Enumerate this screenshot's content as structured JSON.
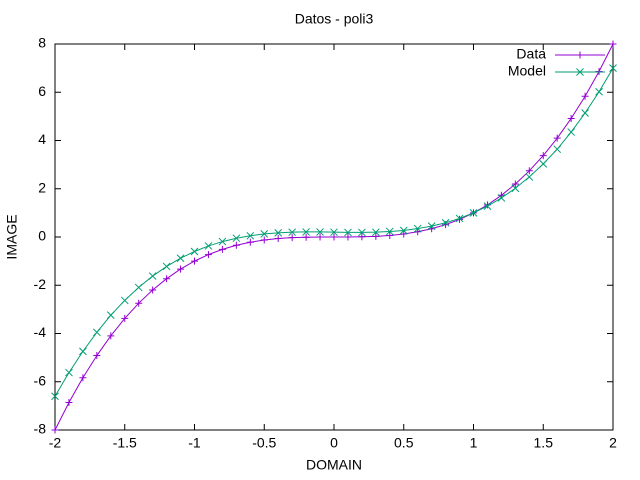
{
  "chart_data": {
    "type": "line",
    "title": "Datos - poli3",
    "xlabel": "DOMAIN",
    "ylabel": "IMAGE",
    "x": [
      -2,
      -1.9,
      -1.8,
      -1.7,
      -1.6,
      -1.5,
      -1.4,
      -1.3,
      -1.2,
      -1.1,
      -1,
      -0.9,
      -0.8,
      -0.7,
      -0.6,
      -0.5,
      -0.4,
      -0.3,
      -0.2,
      -0.1,
      0,
      0.1,
      0.2,
      0.3,
      0.4,
      0.5,
      0.6,
      0.7,
      0.8,
      0.9,
      1,
      1.1,
      1.2,
      1.3,
      1.4,
      1.5,
      1.6,
      1.7,
      1.8,
      1.9,
      2
    ],
    "series": [
      {
        "name": "Data",
        "color": "#9400d3",
        "marker": "plus",
        "values": [
          -8,
          -6.859,
          -5.832,
          -4.913,
          -4.096,
          -3.375,
          -2.744,
          -2.197,
          -1.728,
          -1.331,
          -1,
          -0.729,
          -0.512,
          -0.343,
          -0.216,
          -0.125,
          -0.064,
          -0.027,
          -0.008,
          -0.001,
          0,
          0.001,
          0.008,
          0.027,
          0.064,
          0.125,
          0.216,
          0.343,
          0.512,
          0.729,
          1,
          1.331,
          1.728,
          2.197,
          2.744,
          3.375,
          4.096,
          4.913,
          5.832,
          6.859,
          8
        ]
      },
      {
        "name": "Model",
        "color": "#009e73",
        "marker": "cross",
        "values": [
          -6.6,
          -5.62,
          -4.74,
          -3.95,
          -3.24,
          -2.63,
          -2.09,
          -1.62,
          -1.22,
          -0.88,
          -0.6,
          -0.37,
          -0.19,
          -0.05,
          0.05,
          0.13,
          0.17,
          0.2,
          0.21,
          0.21,
          0.2,
          0.19,
          0.19,
          0.2,
          0.23,
          0.27,
          0.35,
          0.45,
          0.59,
          0.77,
          1,
          1.28,
          1.62,
          2.02,
          2.49,
          3.03,
          3.64,
          4.35,
          5.14,
          6.02,
          7
        ]
      }
    ],
    "xlim": [
      -2,
      2
    ],
    "xticks": [
      -2,
      -1.5,
      -1,
      -0.5,
      0,
      0.5,
      1,
      1.5,
      2
    ],
    "ylim": [
      -8,
      8
    ],
    "yticks": [
      -8,
      -6,
      -4,
      -2,
      0,
      2,
      4,
      6,
      8
    ],
    "grid": false,
    "legend": "top right"
  }
}
